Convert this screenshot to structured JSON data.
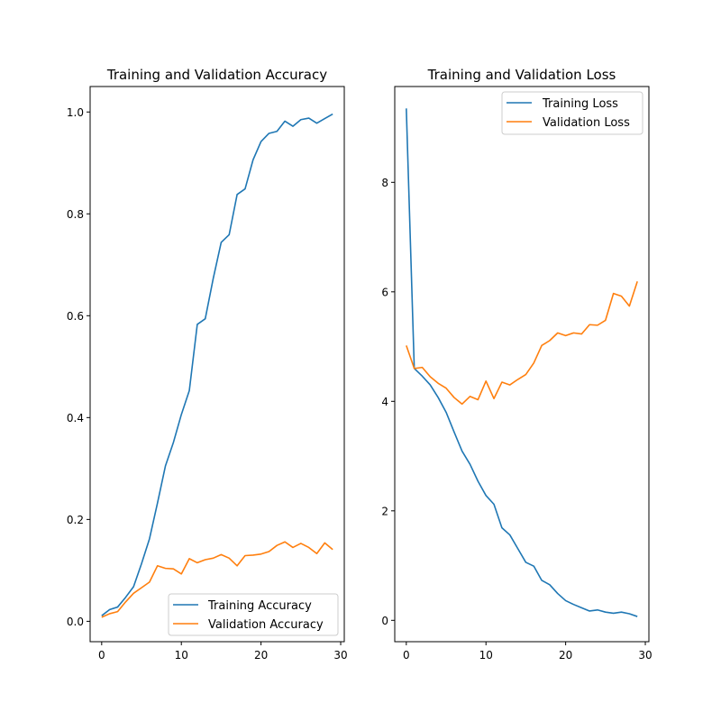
{
  "chart_data": [
    {
      "type": "line",
      "title": "Training and Validation Accuracy",
      "xlabel": "",
      "ylabel": "",
      "xlim": [
        -1.45,
        30.45
      ],
      "ylim": [
        -0.04,
        1.05
      ],
      "xticks": [
        0,
        10,
        20,
        30
      ],
      "xtick_labels": [
        "0",
        "10",
        "20",
        "30"
      ],
      "yticks": [
        0.0,
        0.2,
        0.4,
        0.6,
        0.8,
        1.0
      ],
      "ytick_labels": [
        "0.0",
        "0.2",
        "0.4",
        "0.6",
        "0.8",
        "1.0"
      ],
      "grid": false,
      "legend_position": "lower right",
      "x": [
        0,
        1,
        2,
        3,
        4,
        5,
        6,
        7,
        8,
        9,
        10,
        11,
        12,
        13,
        14,
        15,
        16,
        17,
        18,
        19,
        20,
        21,
        22,
        23,
        24,
        25,
        26,
        27,
        28,
        29
      ],
      "series": [
        {
          "name": "Training Accuracy",
          "color": "#1f77b4",
          "values": [
            0.011,
            0.023,
            0.028,
            0.047,
            0.068,
            0.113,
            0.162,
            0.232,
            0.305,
            0.351,
            0.406,
            0.453,
            0.583,
            0.594,
            0.673,
            0.744,
            0.759,
            0.838,
            0.849,
            0.906,
            0.942,
            0.958,
            0.962,
            0.982,
            0.972,
            0.985,
            0.988,
            0.978,
            0.987,
            0.996
          ]
        },
        {
          "name": "Validation Accuracy",
          "color": "#ff7f0e",
          "values": [
            0.008,
            0.015,
            0.019,
            0.038,
            0.055,
            0.066,
            0.077,
            0.109,
            0.104,
            0.103,
            0.093,
            0.123,
            0.115,
            0.121,
            0.124,
            0.131,
            0.124,
            0.109,
            0.129,
            0.13,
            0.132,
            0.137,
            0.149,
            0.156,
            0.145,
            0.153,
            0.145,
            0.133,
            0.154,
            0.141
          ]
        }
      ]
    },
    {
      "type": "line",
      "title": "Training and Validation Loss",
      "xlabel": "",
      "ylabel": "",
      "xlim": [
        -1.45,
        30.45
      ],
      "ylim": [
        -0.39,
        9.75
      ],
      "xticks": [
        0,
        10,
        20,
        30
      ],
      "xtick_labels": [
        "0",
        "10",
        "20",
        "30"
      ],
      "yticks": [
        0,
        2,
        4,
        6,
        8
      ],
      "ytick_labels": [
        "0",
        "2",
        "4",
        "6",
        "8"
      ],
      "grid": false,
      "legend_position": "upper right",
      "x": [
        0,
        1,
        2,
        3,
        4,
        5,
        6,
        7,
        8,
        9,
        10,
        11,
        12,
        13,
        14,
        15,
        16,
        17,
        18,
        19,
        20,
        21,
        22,
        23,
        24,
        25,
        26,
        27,
        28,
        29
      ],
      "series": [
        {
          "name": "Training Loss",
          "color": "#1f77b4",
          "values": [
            9.35,
            4.6,
            4.46,
            4.3,
            4.07,
            3.8,
            3.44,
            3.09,
            2.85,
            2.54,
            2.28,
            2.12,
            1.69,
            1.56,
            1.31,
            1.06,
            0.99,
            0.73,
            0.65,
            0.49,
            0.36,
            0.29,
            0.23,
            0.17,
            0.19,
            0.15,
            0.13,
            0.15,
            0.12,
            0.07
          ]
        },
        {
          "name": "Validation Loss",
          "color": "#ff7f0e",
          "values": [
            5.02,
            4.6,
            4.62,
            4.45,
            4.33,
            4.24,
            4.07,
            3.95,
            4.09,
            4.03,
            4.37,
            4.05,
            4.35,
            4.3,
            4.4,
            4.49,
            4.7,
            5.02,
            5.11,
            5.25,
            5.2,
            5.25,
            5.23,
            5.4,
            5.39,
            5.48,
            5.97,
            5.92,
            5.74,
            6.19
          ]
        }
      ]
    }
  ]
}
